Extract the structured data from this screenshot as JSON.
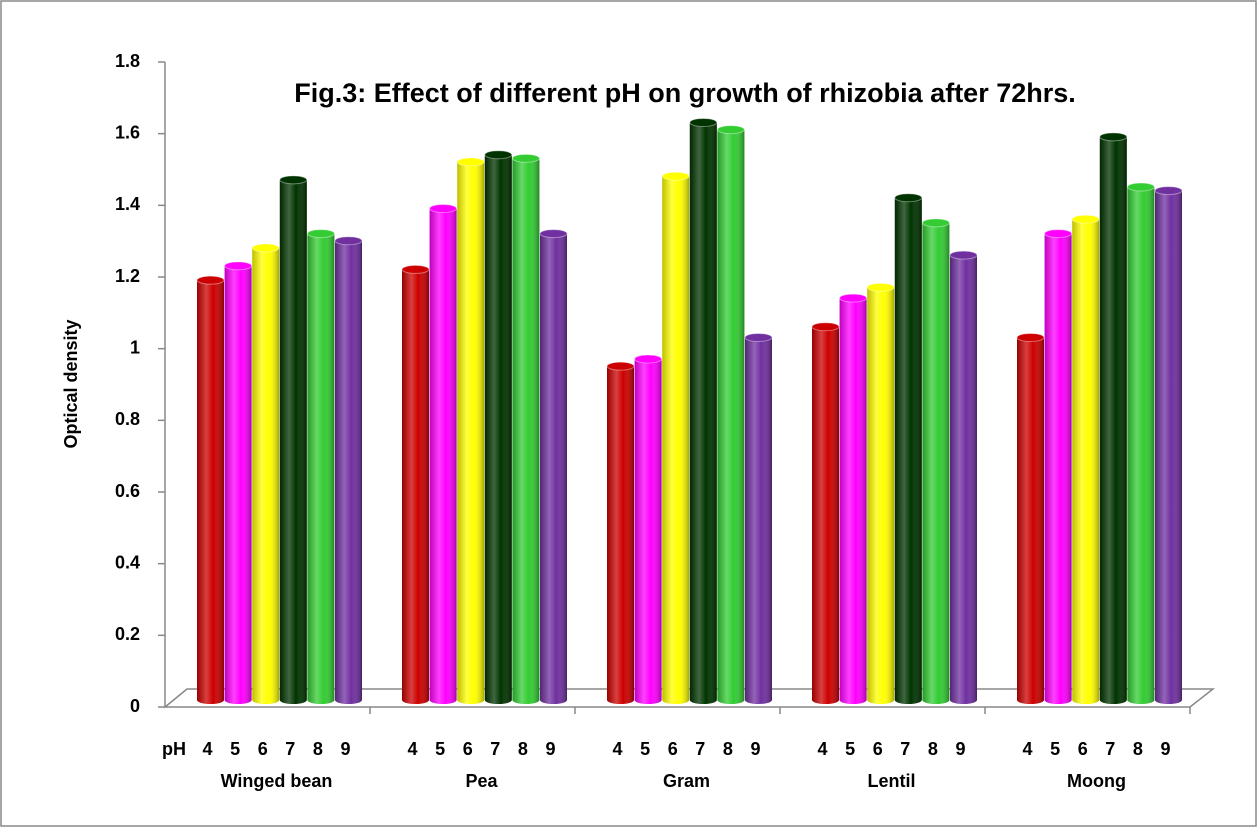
{
  "chart_data": {
    "type": "bar",
    "title": "Fig.3: Effect of different pH on growth of rhizobia after 72hrs.",
    "y_label": "Optical density",
    "series_axis_label": "pH",
    "categories": [
      "Winged bean",
      "Pea",
      "Gram",
      "Lentil",
      "Moong"
    ],
    "series": [
      {
        "name": "4",
        "color": "#cc0000",
        "values": [
          1.18,
          1.21,
          0.94,
          1.05,
          1.02
        ]
      },
      {
        "name": "5",
        "color": "#ff00ff",
        "values": [
          1.22,
          1.38,
          0.96,
          1.13,
          1.31
        ]
      },
      {
        "name": "6",
        "color": "#ffff00",
        "values": [
          1.27,
          1.51,
          1.47,
          1.16,
          1.35
        ]
      },
      {
        "name": "7",
        "color": "#003300",
        "values": [
          1.46,
          1.53,
          1.62,
          1.41,
          1.58
        ]
      },
      {
        "name": "8",
        "color": "#33cc33",
        "values": [
          1.31,
          1.52,
          1.6,
          1.34,
          1.44
        ]
      },
      {
        "name": "9",
        "color": "#7030a0",
        "values": [
          1.29,
          1.31,
          1.02,
          1.25,
          1.43
        ]
      }
    ],
    "ylim": [
      0,
      1.8
    ],
    "yticks": [
      0,
      0.2,
      0.4,
      0.6,
      0.8,
      1,
      1.2,
      1.4,
      1.6,
      1.8
    ],
    "grid": false
  }
}
